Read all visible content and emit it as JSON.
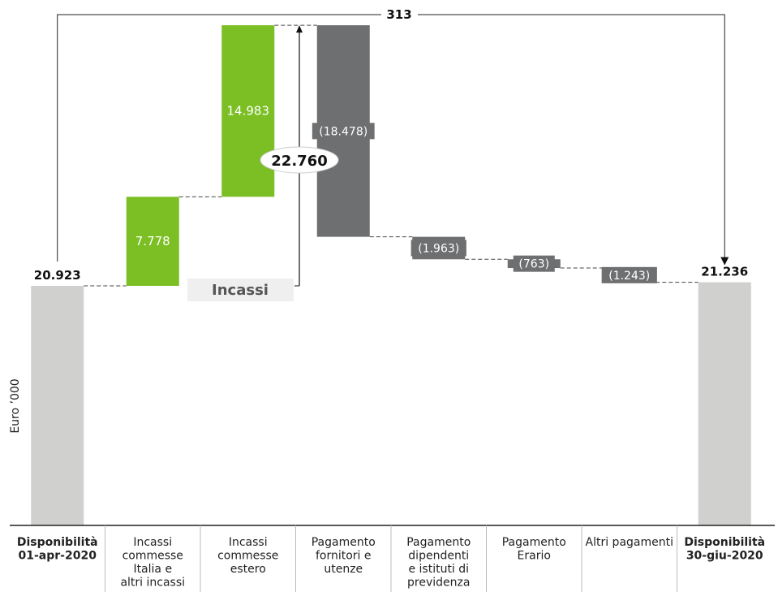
{
  "chart_data": {
    "type": "bar",
    "subtype": "waterfall",
    "ylabel": "Euro ’000",
    "categories": [
      [
        "Disponibilità",
        "01-apr-2020"
      ],
      [
        "Incassi",
        "commesse",
        "Italia e",
        "altri incassi"
      ],
      [
        "Incassi",
        "commesse",
        "estero"
      ],
      [
        "Pagamento",
        "fornitori e",
        "utenze"
      ],
      [
        "Pagamento",
        "dipendenti",
        "e istituti di",
        "previdenza"
      ],
      [
        "Pagamento",
        "Erario"
      ],
      [
        "Altri pagamenti"
      ],
      [
        "Disponibilità",
        "30-giu-2020"
      ]
    ],
    "values": [
      20923,
      7778,
      14983,
      -18478,
      -1963,
      -763,
      -1243,
      21236
    ],
    "kinds": [
      "total",
      "increase",
      "increase",
      "decrease",
      "decrease",
      "decrease",
      "decrease",
      "total"
    ],
    "labels": [
      "20.923",
      "7.778",
      "14.983",
      "(18.478)",
      "(1.963)",
      "(763)",
      "(1.243)",
      "21.236"
    ],
    "incassi": {
      "label": "Incassi",
      "total": "22.760"
    },
    "difference": "313",
    "colors": {
      "total": "#d0d0cf",
      "increase": "#7bbf24",
      "decrease": "#6e6f71",
      "incassi_box": "#efefef",
      "text": "#222222"
    }
  }
}
